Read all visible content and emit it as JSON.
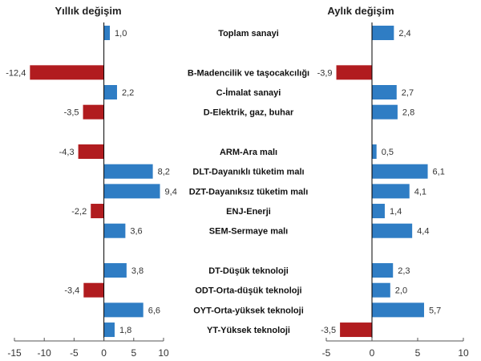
{
  "colors": {
    "positive": "#2f7dc4",
    "negative": "#b11c1f"
  },
  "chart_data": [
    {
      "type": "bar",
      "orientation": "horizontal",
      "title": "Yıllık değişim",
      "categories": [
        "Toplam sanayi",
        "B-Madencilik ve taşocakcılığı",
        "C-İmalat sanayi",
        "D-Elektrik, gaz, buhar",
        "ARM-Ara malı",
        "DLT-Dayanıklı tüketim malı",
        "DZT-Dayanıksız tüketim malı",
        "ENJ-Enerji",
        "SEM-Sermaye malı",
        "DT-Düşük teknoloji",
        "ODT-Orta-düşük teknoloji",
        "OYT-Orta-yüksek teknoloji",
        "YT-Yüksek teknoloji"
      ],
      "values": [
        1.0,
        -12.4,
        2.2,
        -3.5,
        -4.3,
        8.2,
        9.4,
        -2.2,
        3.6,
        3.8,
        -3.4,
        6.6,
        1.8
      ],
      "value_labels": [
        "1,0",
        "-12,4",
        "2,2",
        "-3,5",
        "-4,3",
        "8,2",
        "9,4",
        "-2,2",
        "3,6",
        "3,8",
        "-3,4",
        "6,6",
        "1,8"
      ],
      "xlim": [
        -15,
        10
      ],
      "xticks": [
        "-15",
        "-10",
        "-5",
        "0",
        "5",
        "10"
      ],
      "grid": false
    },
    {
      "type": "bar",
      "orientation": "horizontal",
      "title": "Aylık değişim",
      "categories": [
        "Toplam sanayi",
        "B-Madencilik ve taşocakcılığı",
        "C-İmalat sanayi",
        "D-Elektrik, gaz, buhar",
        "ARM-Ara malı",
        "DLT-Dayanıklı tüketim malı",
        "DZT-Dayanıksız tüketim malı",
        "ENJ-Enerji",
        "SEM-Sermaye malı",
        "DT-Düşük teknoloji",
        "ODT-Orta-düşük teknoloji",
        "OYT-Orta-yüksek teknoloji",
        "YT-Yüksek teknoloji"
      ],
      "values": [
        2.4,
        -3.9,
        2.7,
        2.8,
        0.5,
        6.1,
        4.1,
        1.4,
        4.4,
        2.3,
        2.0,
        5.7,
        -3.5
      ],
      "value_labels": [
        "2,4",
        "-3,9",
        "2,7",
        "2,8",
        "0,5",
        "6,1",
        "4,1",
        "1,4",
        "4,4",
        "2,3",
        "2,0",
        "5,7",
        "-3,5"
      ],
      "xlim": [
        -5,
        10
      ],
      "xticks": [
        "-5",
        "0",
        "5",
        "10"
      ],
      "grid": false
    }
  ]
}
